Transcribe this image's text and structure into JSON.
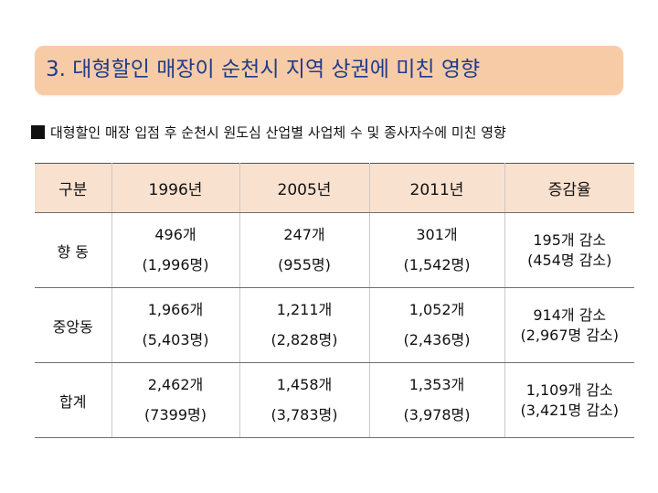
{
  "title": "3. 대형할인 매장이 순천시 지역 상권에 미친 영향",
  "subtitle": "대형할인 매장 입점 후 순천시 원도심 산업별 사업체 수 및 종사자수에 미친 영향",
  "table": {
    "headers": [
      "구분",
      "1996년",
      "2005년",
      "2011년",
      "증감율"
    ],
    "rows": [
      {
        "label": "향 동",
        "y1996": [
          "496개",
          "(1,996명)"
        ],
        "y2005": [
          "247개",
          "(955명)"
        ],
        "y2011": [
          "301개",
          "(1,542명)"
        ],
        "change": [
          "195개 감소",
          "(454명 감소)"
        ]
      },
      {
        "label": "중앙동",
        "y1996": [
          "1,966개",
          "(5,403명)"
        ],
        "y2005": [
          "1,211개",
          "(2,828명)"
        ],
        "y2011": [
          "1,052개",
          "(2,436명)"
        ],
        "change": [
          "914개 감소",
          "(2,967명 감소)"
        ]
      },
      {
        "label": "합계",
        "y1996": [
          "2,462개",
          "(7399명)"
        ],
        "y2005": [
          "1,458개",
          "(3,783명)"
        ],
        "y2011": [
          "1,353개",
          "(3,978명)"
        ],
        "change": [
          "1,109개 감소",
          "(3,421명 감소)"
        ]
      }
    ]
  },
  "colors": {
    "title_bg": "#f8cba7",
    "title_text": "#1f3c8a",
    "header_bg": "#f9e1cf"
  }
}
